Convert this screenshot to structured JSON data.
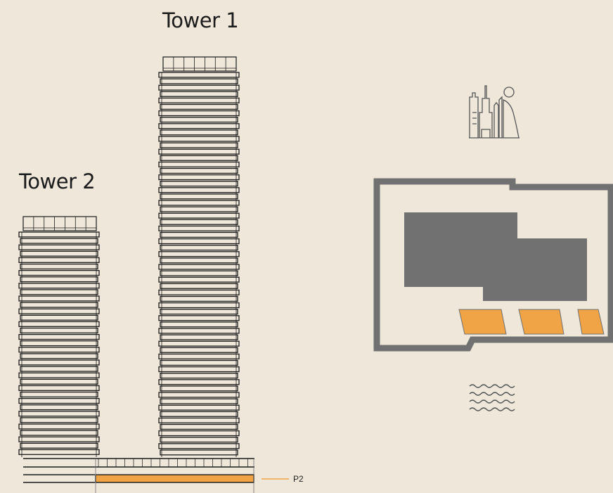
{
  "towers": [
    {
      "name": "Tower 1"
    },
    {
      "name": "Tower 2"
    }
  ],
  "podium": {
    "selected_floor": "P2"
  },
  "colors": {
    "background": "#efe7da",
    "line": "#1b1b1b",
    "highlight": "#f0a445",
    "site": "#717171"
  },
  "icons": {
    "skyline": "skyline-icon",
    "water": "water-waves-icon"
  }
}
